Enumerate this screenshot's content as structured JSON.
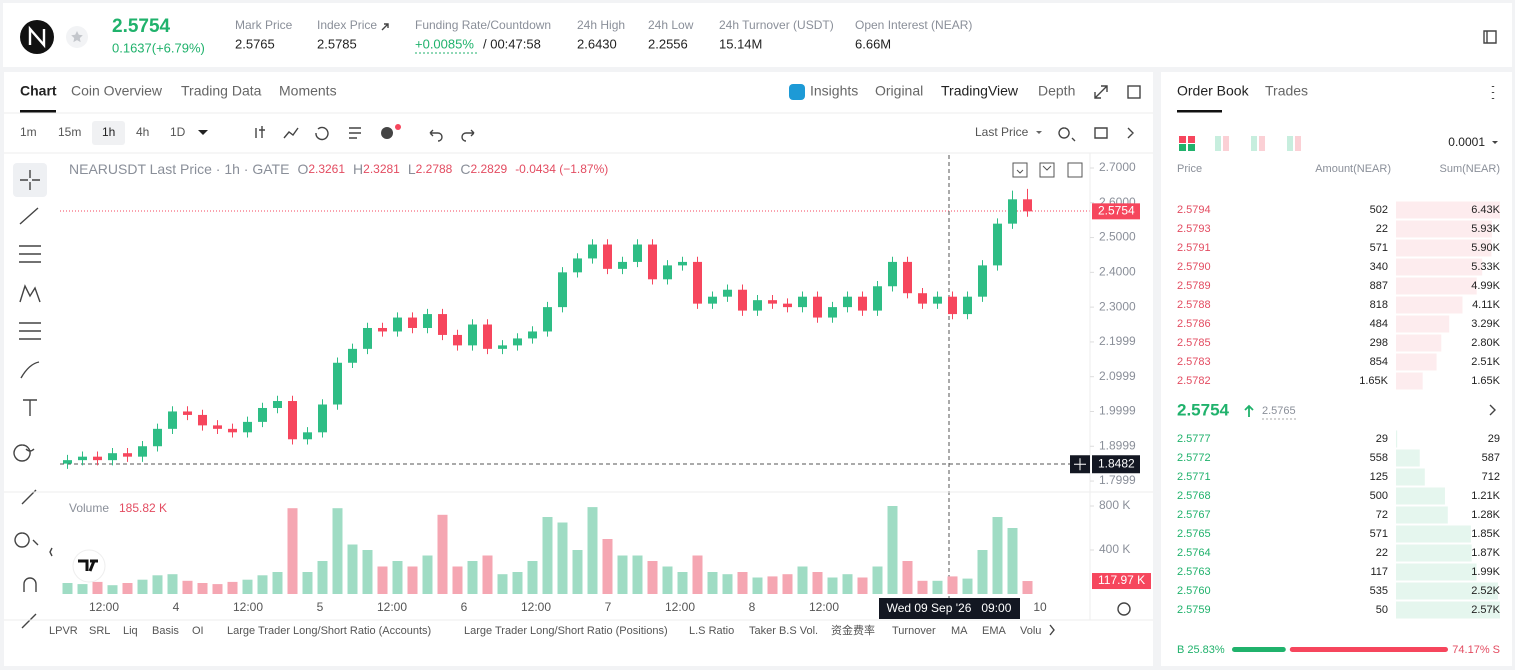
{
  "header": {
    "price": "2.5754",
    "change": "0.1637(+6.79%)",
    "stats": [
      {
        "label": "Mark Price",
        "value": "2.5765"
      },
      {
        "label": "Index Price",
        "value": "2.5785"
      },
      {
        "label": "Funding Rate/Countdown",
        "value": "+0.0085%",
        "extra": "/ 00:47:58"
      },
      {
        "label": "24h High",
        "value": "2.6430"
      },
      {
        "label": "24h Low",
        "value": "2.2556"
      },
      {
        "label": "24h Turnover (USDT)",
        "value": "15.14M"
      },
      {
        "label": "Open Interest (NEAR)",
        "value": "6.66M"
      }
    ]
  },
  "chart_tabs": [
    "Chart",
    "Coin Overview",
    "Trading Data",
    "Moments"
  ],
  "view_tabs": [
    "Insights",
    "Original",
    "TradingView",
    "Depth"
  ],
  "intervals": [
    "1m",
    "15m",
    "1h",
    "4h",
    "1D"
  ],
  "price_source": "Last Price",
  "legend": {
    "symbol": "NEARUSDT Last Price · 1h · GATE",
    "ohlc_keys": [
      "O",
      "H",
      "L",
      "C"
    ],
    "ohlc_values": [
      "2.3261",
      "2.3281",
      "2.2788",
      "2.2829"
    ],
    "change": "-0.0434 (−1.87%)"
  },
  "chart_data": {
    "type": "candlestick",
    "candles": [
      [
        1.85,
        1.875,
        1.835,
        1.86
      ],
      [
        1.86,
        1.885,
        1.845,
        1.87
      ],
      [
        1.87,
        1.885,
        1.845,
        1.86
      ],
      [
        1.86,
        1.895,
        1.845,
        1.88
      ],
      [
        1.88,
        1.895,
        1.855,
        1.87
      ],
      [
        1.87,
        1.915,
        1.855,
        1.9
      ],
      [
        1.9,
        1.965,
        1.885,
        1.95
      ],
      [
        1.95,
        2.015,
        1.935,
        2.0
      ],
      [
        2.0,
        2.015,
        1.975,
        1.99
      ],
      [
        1.99,
        2.005,
        1.945,
        1.96
      ],
      [
        1.96,
        1.975,
        1.935,
        1.95
      ],
      [
        1.95,
        1.965,
        1.925,
        1.94
      ],
      [
        1.94,
        1.985,
        1.925,
        1.97
      ],
      [
        1.97,
        2.025,
        1.955,
        2.01
      ],
      [
        2.01,
        2.045,
        1.995,
        2.03
      ],
      [
        2.03,
        2.045,
        1.905,
        1.92
      ],
      [
        1.92,
        1.955,
        1.905,
        1.94
      ],
      [
        1.94,
        2.035,
        1.925,
        2.02
      ],
      [
        2.02,
        2.155,
        2.005,
        2.14
      ],
      [
        2.14,
        2.195,
        2.125,
        2.18
      ],
      [
        2.18,
        2.255,
        2.165,
        2.24
      ],
      [
        2.24,
        2.255,
        2.215,
        2.23
      ],
      [
        2.23,
        2.285,
        2.215,
        2.27
      ],
      [
        2.27,
        2.285,
        2.225,
        2.24
      ],
      [
        2.24,
        2.295,
        2.225,
        2.28
      ],
      [
        2.28,
        2.295,
        2.205,
        2.22
      ],
      [
        2.22,
        2.235,
        2.175,
        2.19
      ],
      [
        2.19,
        2.265,
        2.175,
        2.25
      ],
      [
        2.25,
        2.265,
        2.165,
        2.18
      ],
      [
        2.18,
        2.205,
        2.165,
        2.19
      ],
      [
        2.19,
        2.225,
        2.175,
        2.21
      ],
      [
        2.21,
        2.245,
        2.195,
        2.23
      ],
      [
        2.23,
        2.315,
        2.215,
        2.3
      ],
      [
        2.3,
        2.415,
        2.285,
        2.4
      ],
      [
        2.4,
        2.455,
        2.385,
        2.44
      ],
      [
        2.44,
        2.495,
        2.425,
        2.48
      ],
      [
        2.48,
        2.495,
        2.395,
        2.41
      ],
      [
        2.41,
        2.445,
        2.395,
        2.43
      ],
      [
        2.43,
        2.495,
        2.415,
        2.48
      ],
      [
        2.48,
        2.495,
        2.365,
        2.38
      ],
      [
        2.38,
        2.435,
        2.365,
        2.42
      ],
      [
        2.42,
        2.445,
        2.405,
        2.43
      ],
      [
        2.43,
        2.445,
        2.295,
        2.31
      ],
      [
        2.31,
        2.345,
        2.295,
        2.33
      ],
      [
        2.33,
        2.365,
        2.315,
        2.35
      ],
      [
        2.35,
        2.365,
        2.275,
        2.29
      ],
      [
        2.29,
        2.335,
        2.275,
        2.32
      ],
      [
        2.32,
        2.335,
        2.295,
        2.31
      ],
      [
        2.31,
        2.325,
        2.285,
        2.3
      ],
      [
        2.3,
        2.345,
        2.285,
        2.33
      ],
      [
        2.33,
        2.345,
        2.255,
        2.27
      ],
      [
        2.27,
        2.315,
        2.255,
        2.3
      ],
      [
        2.3,
        2.345,
        2.285,
        2.33
      ],
      [
        2.33,
        2.345,
        2.275,
        2.29
      ],
      [
        2.29,
        2.375,
        2.275,
        2.36
      ],
      [
        2.36,
        2.445,
        2.345,
        2.43
      ],
      [
        2.43,
        2.445,
        2.325,
        2.34
      ],
      [
        2.34,
        2.355,
        2.295,
        2.31
      ],
      [
        2.31,
        2.345,
        2.295,
        2.33
      ],
      [
        2.33,
        2.345,
        2.265,
        2.28
      ],
      [
        2.28,
        2.345,
        2.265,
        2.33
      ],
      [
        2.33,
        2.435,
        2.315,
        2.42
      ],
      [
        2.42,
        2.555,
        2.405,
        2.54
      ],
      [
        2.54,
        2.635,
        2.525,
        2.61
      ],
      [
        2.61,
        2.64,
        2.56,
        2.5754
      ]
    ],
    "volume": [
      100000,
      90000,
      110000,
      80000,
      100000,
      130000,
      170000,
      180000,
      120000,
      100000,
      90000,
      110000,
      130000,
      170000,
      200000,
      780000,
      200000,
      300000,
      780000,
      450000,
      400000,
      250000,
      300000,
      250000,
      350000,
      720000,
      250000,
      300000,
      350000,
      180000,
      200000,
      300000,
      700000,
      650000,
      400000,
      790000,
      500000,
      350000,
      350000,
      300000,
      250000,
      200000,
      350000,
      200000,
      180000,
      200000,
      150000,
      160000,
      180000,
      250000,
      200000,
      150000,
      180000,
      150000,
      250000,
      800000,
      300000,
      120000,
      120000,
      160000,
      140000,
      400000,
      700000,
      600000,
      117970
    ],
    "ylim": [
      1.7684,
      2.7374
    ],
    "yticks": [
      {
        "value": 2.7,
        "label": "2.7000"
      },
      {
        "value": 2.6,
        "label": "2.6000"
      },
      {
        "value": 2.5,
        "label": "2.5000"
      },
      {
        "value": 2.4,
        "label": "2.4000"
      },
      {
        "value": 2.3,
        "label": "2.3000"
      },
      {
        "value": 2.1999,
        "label": "2.1999"
      },
      {
        "value": 2.0999,
        "label": "2.0999"
      },
      {
        "value": 1.9999,
        "label": "1.9999"
      },
      {
        "value": 1.8999,
        "label": "1.8999"
      },
      {
        "value": 1.7999,
        "label": "1.7999"
      }
    ],
    "volume_ylim": [
      0,
      900000
    ],
    "volume_ticks": [
      {
        "value": 800000,
        "label": "800 K"
      },
      {
        "value": 400000,
        "label": "400 K"
      }
    ],
    "x_labels": [
      "12:00",
      "4",
      "12:00",
      "5",
      "12:00",
      "6",
      "12:00",
      "7",
      "12:00",
      "8",
      "12:00",
      "10"
    ],
    "last_price": 2.5754,
    "crosshair_price": 1.8482,
    "crosshair_time": "Wed 09 Sep '26   09:00",
    "volume_title": "Volume",
    "volume_value": "185.82 K",
    "last_volume_label": "117.97 K"
  },
  "indicators": [
    "LPVR",
    "SRL",
    "Liq",
    "Basis",
    "OI",
    "Large Trader Long/Short Ratio (Accounts)",
    "Large Trader Long/Short Ratio (Positions)",
    "L.S Ratio",
    "Taker B.S Vol.",
    "资金费率",
    "Turnover",
    "MA",
    "EMA",
    "Volu"
  ],
  "order_book": {
    "tabs": [
      "Order Book",
      "Trades"
    ],
    "precision": "0.0001",
    "columns": [
      "Price",
      "Amount(NEAR)",
      "Sum(NEAR)"
    ],
    "asks": {
      "prices": [
        "2.5794",
        "2.5793",
        "2.5791",
        "2.5790",
        "2.5789",
        "2.5788",
        "2.5786",
        "2.5785",
        "2.5783",
        "2.5782"
      ],
      "amounts": [
        "502",
        "22",
        "571",
        "340",
        "887",
        "818",
        "484",
        "298",
        "854",
        "1.65K"
      ],
      "sums": [
        6430,
        5930,
        5900,
        5330,
        4990,
        4110,
        3290,
        2800,
        2510,
        1650
      ],
      "sum_labels": [
        "6.43K",
        "5.93K",
        "5.90K",
        "5.33K",
        "4.99K",
        "4.11K",
        "3.29K",
        "2.80K",
        "2.51K",
        "1.65K"
      ]
    },
    "mid": {
      "price": "2.5754",
      "mark": "2.5765"
    },
    "bids": {
      "prices": [
        "2.5777",
        "2.5772",
        "2.5771",
        "2.5768",
        "2.5767",
        "2.5765",
        "2.5764",
        "2.5763",
        "2.5760",
        "2.5759"
      ],
      "amounts": [
        "29",
        "558",
        "125",
        "500",
        "72",
        "571",
        "22",
        "117",
        "535",
        "50"
      ],
      "sums": [
        29,
        587,
        712,
        1210,
        1280,
        1850,
        1870,
        1990,
        2520,
        2570
      ],
      "sum_labels": [
        "29",
        "587",
        "712",
        "1.21K",
        "1.28K",
        "1.85K",
        "1.87K",
        "1.99K",
        "2.52K",
        "2.57K"
      ]
    },
    "ratio": {
      "buy": 25.83,
      "sell": 74.17,
      "buy_label": "B 25.83%",
      "sell_label": "74.17% S"
    }
  }
}
